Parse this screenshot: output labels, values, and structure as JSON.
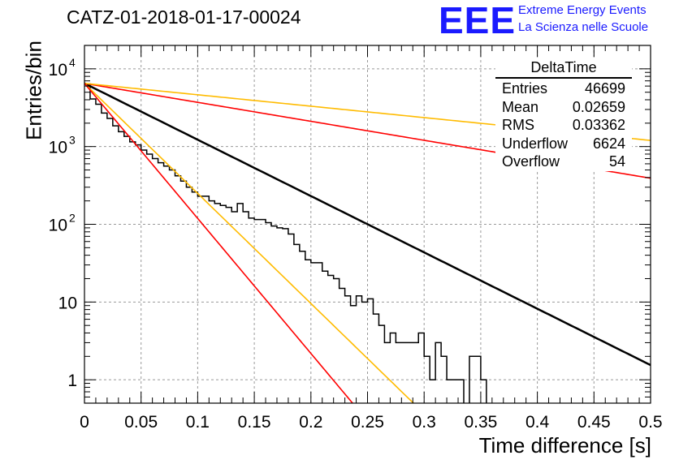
{
  "header": {
    "title": "CATZ-01-2018-01-17-00024",
    "logo_text": "EEE",
    "logo_line1": "Extreme Energy Events",
    "logo_line2": "La Scienza nelle Scuole"
  },
  "stats": {
    "title": "DeltaTime",
    "rows": [
      {
        "label": "Entries",
        "value": "46699"
      },
      {
        "label": "Mean",
        "value": "0.02659"
      },
      {
        "label": "RMS",
        "value": "0.03362"
      },
      {
        "label": "Underflow",
        "value": "6624"
      },
      {
        "label": "Overflow",
        "value": "54"
      }
    ]
  },
  "chart_data": {
    "type": "line",
    "xlabel": "Time difference [s]",
    "ylabel": "Entries/bin",
    "xlim": [
      0,
      0.5
    ],
    "ylim": [
      0.5,
      20000
    ],
    "yscale": "log",
    "grid": true,
    "x_ticks": [
      "0",
      "0.05",
      "0.1",
      "0.15",
      "0.2",
      "0.25",
      "0.3",
      "0.35",
      "0.4",
      "0.45",
      "0.5"
    ],
    "y_ticks": [
      {
        "value": 1,
        "label": "1"
      },
      {
        "value": 10,
        "label": "10"
      },
      {
        "value": 100,
        "label": "10",
        "exp": "2"
      },
      {
        "value": 1000,
        "label": "10",
        "exp": "3"
      },
      {
        "value": 10000,
        "label": "10",
        "exp": "4"
      }
    ],
    "histogram": {
      "bin_width": 0.005,
      "counts": [
        6400,
        4100,
        3500,
        2700,
        2300,
        1850,
        1550,
        1350,
        1150,
        1050,
        900,
        800,
        700,
        620,
        560,
        500,
        420,
        360,
        300,
        260,
        230,
        230,
        200,
        185,
        175,
        165,
        145,
        185,
        145,
        120,
        115,
        115,
        105,
        95,
        90,
        88,
        75,
        55,
        45,
        35,
        32,
        32,
        25,
        22,
        20,
        15,
        12,
        9,
        12,
        10,
        11,
        7,
        5,
        3,
        4,
        3,
        3,
        3,
        3,
        4,
        2,
        1,
        3,
        2,
        1,
        1,
        1,
        0,
        2,
        2,
        1,
        0,
        0,
        0,
        0,
        0,
        0,
        0,
        0,
        0,
        0,
        0,
        0,
        0,
        0,
        0,
        0,
        0,
        0,
        0,
        0,
        0,
        0,
        0,
        0,
        0,
        0,
        0,
        0,
        0
      ]
    },
    "series": [
      {
        "color": "#000000",
        "y0": 6500,
        "slope": -16.69,
        "width": 2.5
      },
      {
        "color": "#ff0000",
        "y0": 6500,
        "slope": -5.62,
        "width": 1.6
      },
      {
        "color": "#ffbb00",
        "y0": 6500,
        "slope": -3.38,
        "width": 1.6
      },
      {
        "color": "#ffbb00",
        "y0": 6500,
        "slope": -32.6,
        "width": 1.6
      },
      {
        "color": "#ff0000",
        "y0": 6500,
        "slope": -40.0,
        "width": 1.6
      }
    ]
  }
}
